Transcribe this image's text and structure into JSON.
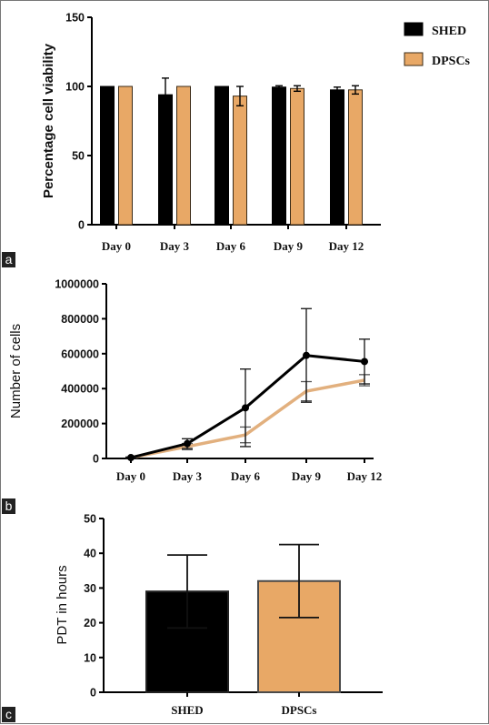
{
  "panels": {
    "a": "a",
    "b": "b",
    "c": "c"
  },
  "colors": {
    "shed": "#000000",
    "dpscs": "#e8a866",
    "dpscs_outline": "#3a2a16",
    "dpscs_line": "#e2b07e"
  },
  "chart_data": [
    {
      "type": "bar",
      "ylabel": "Percentage cell viability",
      "categories": [
        "Day 0",
        "Day 3",
        "Day 6",
        "Day 9",
        "Day 12"
      ],
      "ylim": [
        0,
        150
      ],
      "yticks": [
        0,
        50,
        100,
        150
      ],
      "legend": {
        "position": "top-right",
        "entries": [
          "SHED",
          "DPSCs"
        ]
      },
      "series": [
        {
          "name": "SHED",
          "values": [
            100,
            94,
            100,
            99.5,
            97.5
          ],
          "errors": [
            0,
            12,
            0,
            1,
            2
          ]
        },
        {
          "name": "DPSCs",
          "values": [
            100,
            100,
            93,
            98.5,
            97.5
          ],
          "errors": [
            0,
            0,
            7,
            2,
            3
          ]
        }
      ]
    },
    {
      "type": "line",
      "ylabel": "Number of cells",
      "categories": [
        "Day 0",
        "Day 3",
        "Day 6",
        "Day 9",
        "Day 12"
      ],
      "ylim": [
        0,
        1000000
      ],
      "yticks": [
        0,
        200000,
        400000,
        600000,
        800000,
        1000000
      ],
      "series": [
        {
          "name": "SHED",
          "values": [
            5000,
            85000,
            290000,
            590000,
            555000
          ],
          "errors": [
            3000,
            28000,
            222000,
            268000,
            128000
          ]
        },
        {
          "name": "DPSCs",
          "values": [
            5000,
            68000,
            135000,
            385000,
            448000
          ],
          "errors": [
            3000,
            18000,
            45000,
            55000,
            32000
          ]
        }
      ]
    },
    {
      "type": "bar",
      "ylabel": "PDT in hours",
      "categories": [
        "SHED",
        "DPSCs"
      ],
      "ylim": [
        0,
        50
      ],
      "yticks": [
        0,
        10,
        20,
        30,
        40,
        50
      ],
      "values": [
        29,
        32
      ],
      "errors": [
        10.5,
        10.5
      ]
    }
  ]
}
